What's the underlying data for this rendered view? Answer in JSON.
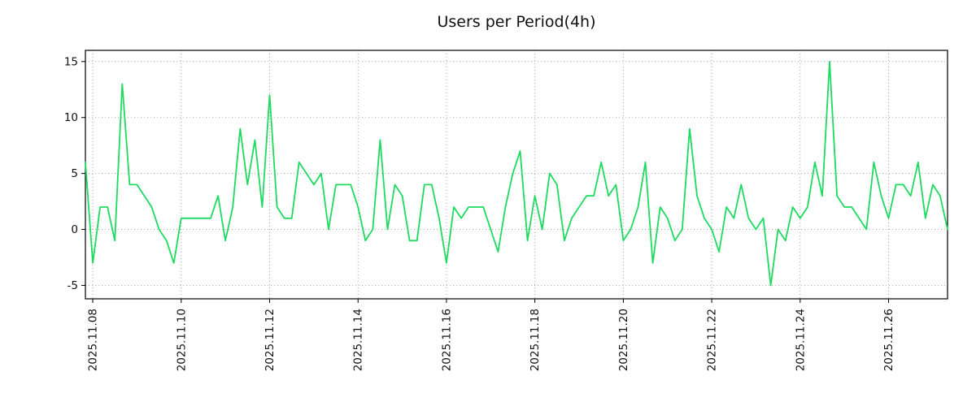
{
  "chart_data": {
    "type": "line",
    "title": "Users per Period(4h)",
    "period_hours": 4,
    "series": [
      {
        "name": "users",
        "values": [
          6,
          -3,
          2,
          2,
          -1,
          13,
          4,
          4,
          3,
          2,
          0,
          -1,
          -3,
          1,
          1,
          1,
          1,
          1,
          3,
          -1,
          2,
          9,
          4,
          8,
          2,
          12,
          2,
          1,
          1,
          6,
          5,
          4,
          5,
          0,
          4,
          4,
          4,
          2,
          -1,
          0,
          8,
          0,
          4,
          3,
          -1,
          -1,
          4,
          4,
          1,
          -3,
          2,
          1,
          2,
          2,
          2,
          0,
          -2,
          2,
          5,
          7,
          -1,
          3,
          0,
          5,
          4,
          -1,
          1,
          2,
          3,
          3,
          6,
          3,
          4,
          -1,
          0,
          2,
          6,
          -3,
          2,
          1,
          -1,
          0,
          9,
          3,
          1,
          0,
          -2,
          2,
          1,
          4,
          1,
          0,
          1,
          -5,
          0,
          -1,
          2,
          1,
          2,
          6,
          3,
          15,
          3,
          2,
          2,
          1,
          0,
          6,
          3,
          1,
          4,
          4,
          3,
          6,
          1,
          4,
          3,
          0
        ]
      }
    ],
    "x_tick_labels": [
      "2025.11.08",
      "2025.11.10",
      "2025.11.12",
      "2025.11.14",
      "2025.11.16",
      "2025.11.18",
      "2025.11.20",
      "2025.11.22",
      "2025.11.24",
      "2025.11.26"
    ],
    "x_tick_indices": [
      1,
      13,
      25,
      37,
      49,
      61,
      73,
      85,
      97,
      109
    ],
    "y_ticks": [
      -5,
      0,
      5,
      10,
      15
    ],
    "y_tick_labels": [
      "-5",
      "0",
      "5",
      "10",
      "15"
    ],
    "ylim": [
      -6.2,
      16
    ],
    "grid": "dotted",
    "legend": "none",
    "line_color": "#1ddb5f",
    "grid_color": "#a8a8a8",
    "axis_color": "#000000"
  }
}
